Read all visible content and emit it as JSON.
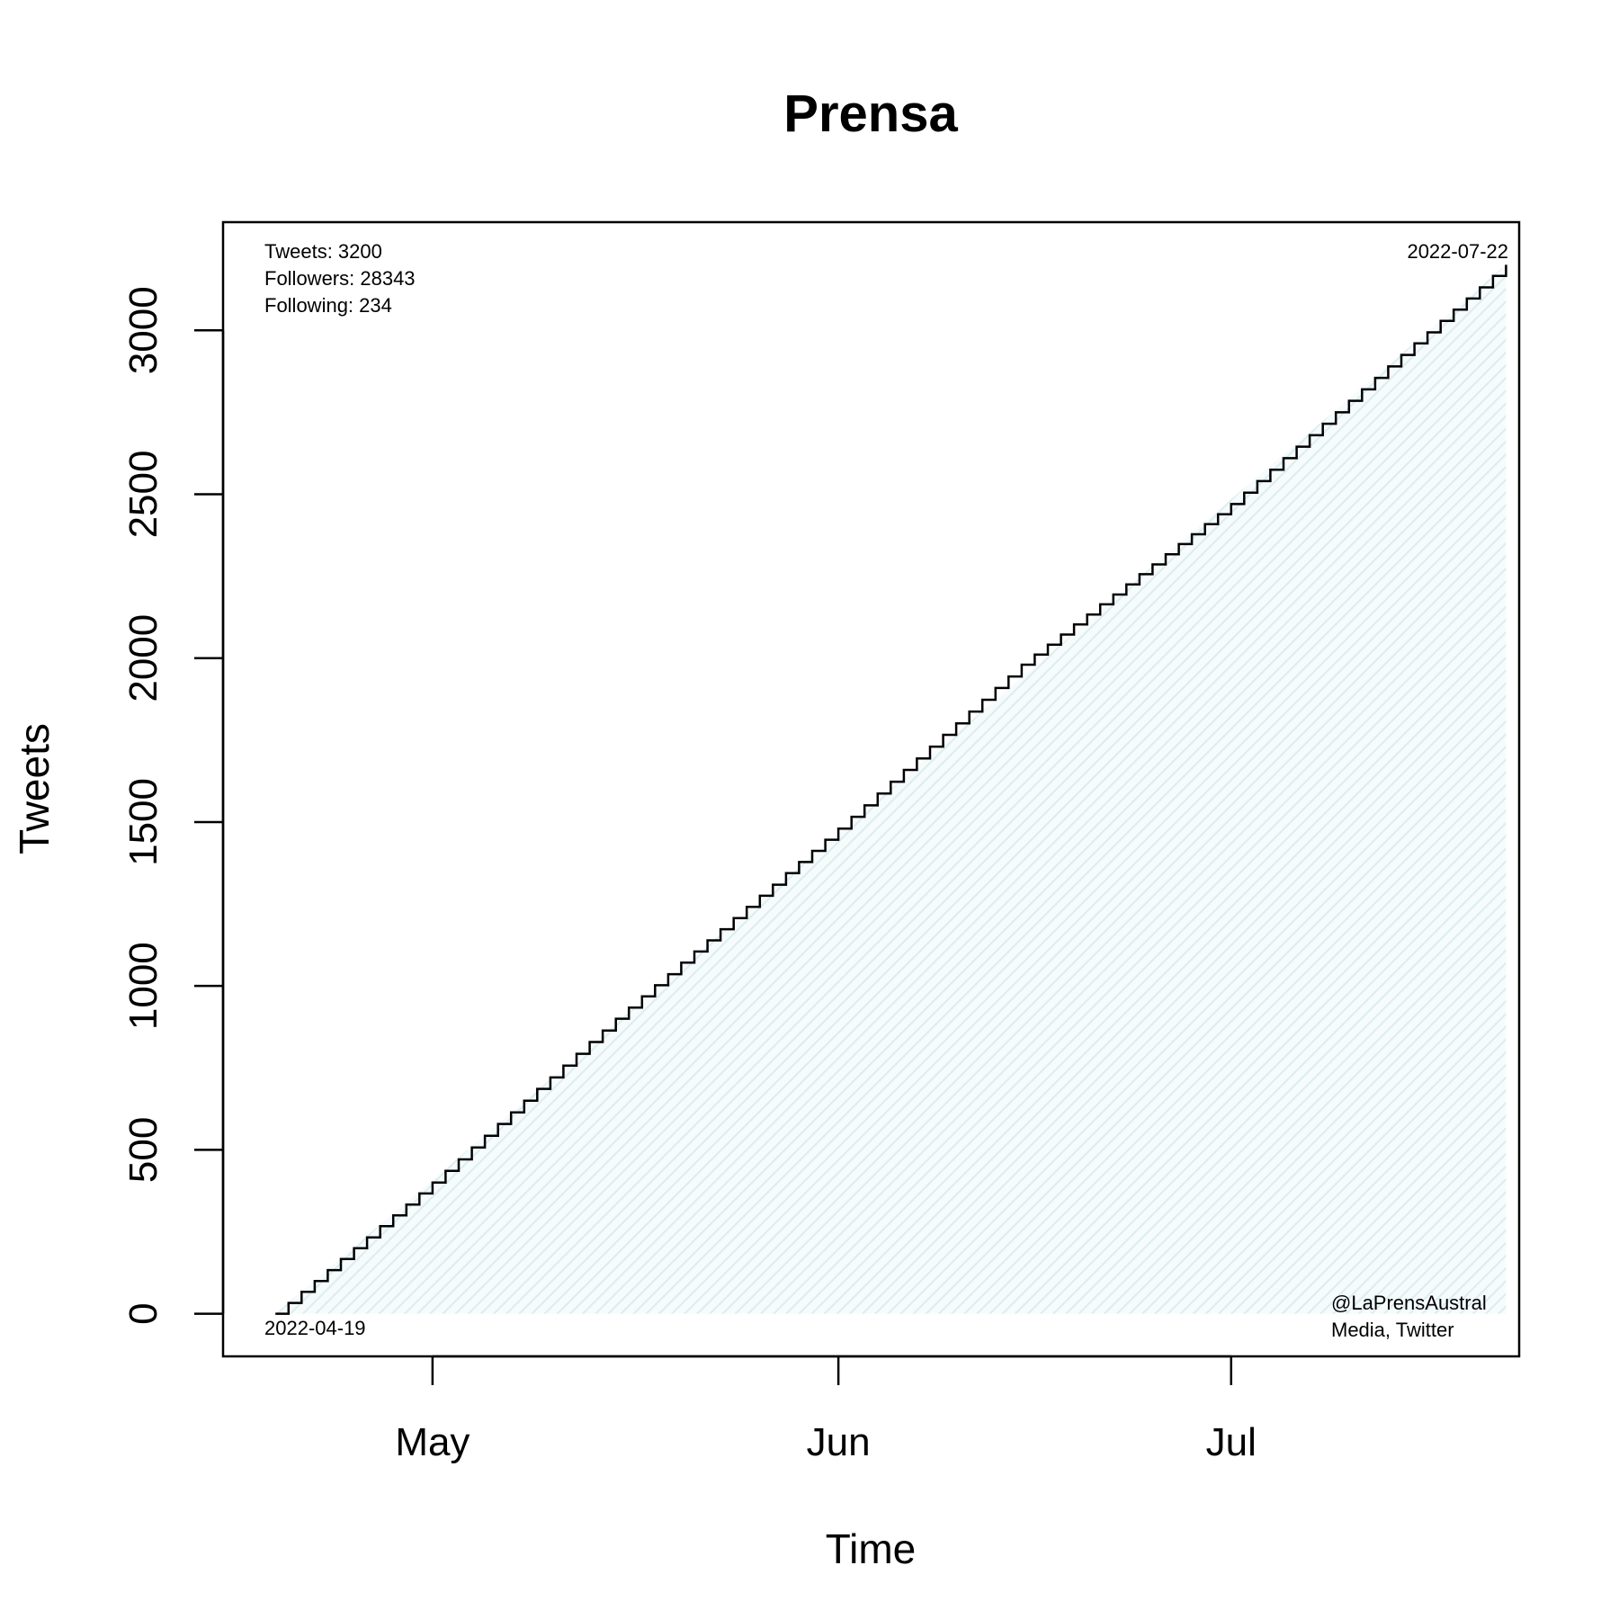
{
  "chart_data": {
    "type": "line",
    "subtype": "step",
    "title": "Prensa",
    "xlabel": "Time",
    "ylabel": "Tweets",
    "x_ticks": [
      {
        "label": "May",
        "date": "2022-05-01"
      },
      {
        "label": "Jun",
        "date": "2022-06-01"
      },
      {
        "label": "Jul",
        "date": "2022-07-01"
      }
    ],
    "y_ticks": [
      0,
      500,
      1000,
      1500,
      2000,
      2500,
      3000
    ],
    "xlim": [
      "2022-04-15",
      "2022-07-23"
    ],
    "ylim": [
      -130,
      3330
    ],
    "start_date": "2022-04-19",
    "end_date": "2022-07-22",
    "start_label": "2022-04-19",
    "end_label": "2022-07-22",
    "total_tweets": 3200,
    "step_days": 1,
    "series": [
      {
        "x": [
          "2022-04-19",
          "2022-05-01",
          "2022-05-15",
          "2022-06-01",
          "2022-06-15",
          "2022-07-01",
          "2022-07-15",
          "2022-07-22"
        ],
        "y": [
          0,
          400,
          900,
          1480,
          1980,
          2470,
          2960,
          3200
        ]
      }
    ],
    "grid": false,
    "fill_color": "#e6f4f6",
    "line_color": "#000000",
    "annotations": {
      "top_left": [
        "Tweets: 3200",
        "Followers: 28343",
        "Following: 234"
      ],
      "bottom_right": [
        "@LaPrensAustral",
        "Media, Twitter"
      ]
    }
  }
}
